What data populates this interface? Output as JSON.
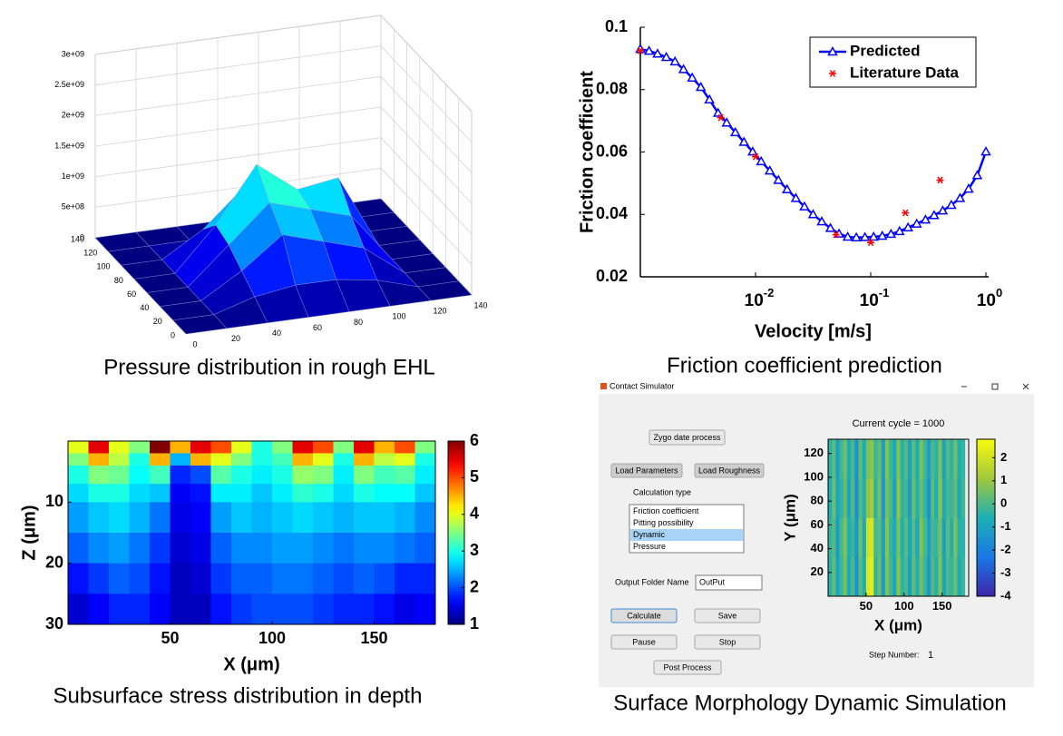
{
  "chart_data": [
    {
      "type": "surface3d",
      "caption": "Pressure distribution in rough EHL",
      "x": [
        0,
        20,
        40,
        60,
        80,
        100,
        120,
        140
      ],
      "y": [
        0,
        20,
        40,
        60,
        80,
        100,
        120,
        140
      ],
      "z": [
        [
          0,
          0,
          0,
          0,
          0,
          0,
          0,
          0
        ],
        [
          0,
          0,
          200000000.0,
          300000000.0,
          300000000.0,
          200000000.0,
          0,
          0
        ],
        [
          0,
          0,
          400000000.0,
          900000000.0,
          700000000.0,
          500000000.0,
          0,
          0
        ],
        [
          0,
          0,
          600000000.0,
          1200000000.0,
          1000000000.0,
          800000000.0,
          0,
          0
        ],
        [
          0,
          0,
          700000000.0,
          1600000000.0,
          1100000000.0,
          1200000000.0,
          0,
          0
        ],
        [
          0,
          0,
          400000000.0,
          1000000000.0,
          900000000.0,
          600000000.0,
          0,
          0
        ],
        [
          0,
          0,
          0,
          200000000.0,
          200000000.0,
          0,
          0,
          0
        ],
        [
          0,
          0,
          0,
          0,
          0,
          0,
          0,
          0
        ]
      ],
      "xlim": [
        0,
        140
      ],
      "ylim": [
        0,
        140
      ],
      "zlim": [
        0,
        3000000000.0
      ],
      "xticks": [
        0,
        20,
        40,
        60,
        80,
        100,
        120,
        140
      ],
      "yticks": [
        0,
        20,
        40,
        60,
        80,
        100,
        120,
        140
      ],
      "zticks": [
        0,
        {
          "value": 500000000.0,
          "label": "5e+08"
        },
        {
          "value": 1000000000.0,
          "label": "1e+09"
        },
        {
          "value": 1500000000.0,
          "label": "1.5e+09"
        },
        {
          "value": 2000000000.0,
          "label": "2e+09"
        },
        {
          "value": 2500000000.0,
          "label": "2.5e+09"
        },
        {
          "value": 3000000000.0,
          "label": "3e+09"
        }
      ],
      "colormap": "jet",
      "grid": true
    },
    {
      "type": "line",
      "caption": "Friction coefficient prediction",
      "xlabel": "Velocity [m/s]",
      "ylabel": "Friction coefficient",
      "xscale": "log",
      "xlim": [
        0.001,
        1
      ],
      "ylim": [
        0.02,
        0.1
      ],
      "xticks": [
        {
          "value": 0.01,
          "label": "10",
          "exponent": "-2"
        },
        {
          "value": 0.1,
          "label": "10",
          "exponent": "-1"
        },
        {
          "value": 1,
          "label": "10",
          "exponent": "0"
        }
      ],
      "yticks": [
        0.02,
        0.04,
        0.06,
        0.08,
        0.1
      ],
      "legend": "upper right",
      "series": [
        {
          "name": "Predicted",
          "color": "#0000ff",
          "marker": "triangle",
          "line": true,
          "x": [
            0.001,
            0.00119,
            0.00141,
            0.00168,
            0.002,
            0.00237,
            0.00282,
            0.00335,
            0.00398,
            0.00473,
            0.00562,
            0.00668,
            0.00794,
            0.00944,
            0.0112,
            0.0133,
            0.0158,
            0.0188,
            0.0224,
            0.0266,
            0.0316,
            0.0376,
            0.0447,
            0.0531,
            0.0631,
            0.075,
            0.0891,
            0.106,
            0.126,
            0.15,
            0.178,
            0.211,
            0.251,
            0.299,
            0.355,
            0.422,
            0.501,
            0.596,
            0.708,
            0.841,
            1
          ],
          "values": [
            0.093,
            0.0924,
            0.0915,
            0.0904,
            0.089,
            0.0865,
            0.0838,
            0.0808,
            0.0768,
            0.0725,
            0.0694,
            0.0663,
            0.0632,
            0.0601,
            0.057,
            0.054,
            0.051,
            0.048,
            0.0452,
            0.0425,
            0.04,
            0.0377,
            0.0356,
            0.0338,
            0.0328,
            0.0326,
            0.0327,
            0.0328,
            0.0331,
            0.0337,
            0.0346,
            0.0358,
            0.037,
            0.0383,
            0.0397,
            0.0412,
            0.043,
            0.0452,
            0.0482,
            0.0525,
            0.0601
          ]
        },
        {
          "name": "Literature Data",
          "color": "#ff0000",
          "marker": "star",
          "line": false,
          "x": [
            0.001,
            0.005,
            0.01,
            0.05,
            0.1,
            0.2,
            0.4
          ],
          "values": [
            0.0925,
            0.071,
            0.0585,
            0.0335,
            0.031,
            0.0405,
            0.051
          ]
        }
      ]
    },
    {
      "type": "heatmap",
      "caption": "Subsurface stress distribution in depth",
      "xlabel": "X (μm)",
      "ylabel": "Z (μm)",
      "xbins": [
        0,
        10,
        20,
        30,
        40,
        50,
        60,
        70,
        80,
        90,
        100,
        110,
        120,
        130,
        140,
        150,
        160,
        170,
        180
      ],
      "ybins": [
        0,
        2,
        4,
        7,
        10,
        15,
        20,
        25,
        30
      ],
      "z": [
        [
          4,
          5.5,
          4,
          3.5,
          6,
          4.5,
          5.5,
          5,
          4,
          3,
          3.5,
          5.5,
          5,
          3.5,
          5.5,
          4.5,
          5,
          3.5
        ],
        [
          3.5,
          4.5,
          3.8,
          3,
          4.5,
          2.5,
          4.5,
          4,
          3.5,
          3,
          3.2,
          4.5,
          4,
          3,
          4.5,
          3.8,
          4,
          3
        ],
        [
          3,
          3.5,
          3.4,
          2.9,
          3.2,
          1.8,
          2,
          3.3,
          3,
          2.8,
          3,
          3.6,
          3.5,
          2.8,
          3.5,
          3.2,
          3.3,
          2.8
        ],
        [
          2.7,
          3,
          3,
          2.7,
          2.6,
          1.6,
          1.7,
          2.8,
          2.8,
          2.6,
          2.8,
          3.1,
          3,
          2.7,
          3,
          2.9,
          2.9,
          2.6
        ],
        [
          2.4,
          2.6,
          2.7,
          2.5,
          2.2,
          1.5,
          1.6,
          2.4,
          2.6,
          2.5,
          2.6,
          2.7,
          2.6,
          2.5,
          2.6,
          2.6,
          2.5,
          2.3
        ],
        [
          2.1,
          2.3,
          2.4,
          2.2,
          1.9,
          1.4,
          1.5,
          2.1,
          2.3,
          2.3,
          2.4,
          2.4,
          2.3,
          2.2,
          2.3,
          2.3,
          2.2,
          2.1
        ],
        [
          1.7,
          1.9,
          2.1,
          2,
          1.7,
          1.3,
          1.4,
          1.9,
          2.1,
          2.1,
          2.2,
          2.2,
          2.1,
          2,
          2.1,
          2,
          1.8,
          1.8
        ],
        [
          1.4,
          1.6,
          1.8,
          1.8,
          1.6,
          1.3,
          1.3,
          1.7,
          1.9,
          2,
          2,
          2,
          1.9,
          1.8,
          1.8,
          1.7,
          1.5,
          1.6
        ]
      ],
      "xlim": [
        0,
        180
      ],
      "ylim": [
        0,
        30
      ],
      "reversed": true,
      "xticks": [
        50,
        100,
        150
      ],
      "yticks": [
        10,
        20,
        30
      ],
      "clim": [
        1,
        6
      ],
      "cticks": [
        1,
        2,
        3,
        4,
        5,
        6
      ],
      "colormap": "jet"
    },
    {
      "type": "heatmap",
      "title": "Current cycle = 1000",
      "xlabel": "X (μm)",
      "ylabel": "Y (μm)",
      "xbins": [
        0,
        5,
        10,
        15,
        20,
        25,
        30,
        35,
        40,
        45,
        50,
        55,
        60,
        65,
        70,
        75,
        80,
        85,
        90,
        95,
        100,
        105,
        110,
        115,
        120,
        125,
        130,
        135,
        140,
        145,
        150,
        155,
        160,
        165,
        170,
        175,
        180
      ],
      "ybins": [
        0,
        33,
        66,
        99,
        132
      ],
      "z": [
        [
          -0.5,
          0.3,
          -1,
          -0.2,
          0.5,
          -0.8,
          0,
          -1.5,
          0.2,
          -0.6,
          2.2,
          2.4,
          -0.3,
          0.4,
          -1.2,
          0.6,
          -0.1,
          -0.9,
          0.8,
          -0.4,
          0,
          -1.1,
          0.3,
          -0.6,
          0.5,
          -0.2,
          -1.3,
          0.1,
          -0.5,
          0.7,
          -0.9,
          0,
          -0.3,
          0.4,
          -0.7,
          -0.2
        ],
        [
          -0.3,
          0.1,
          -1.2,
          0,
          0.6,
          -0.6,
          -0.2,
          -1.3,
          0.4,
          -0.8,
          2,
          2.1,
          -0.1,
          0.2,
          -1,
          0.8,
          -0.3,
          -0.7,
          0.6,
          -0.6,
          0.2,
          -0.9,
          0.1,
          -0.8,
          0.7,
          0,
          -1.1,
          -0.1,
          -0.3,
          0.5,
          -1.1,
          0.2,
          -0.5,
          0.6,
          -0.5,
          -0.4
        ],
        [
          -0.6,
          0.4,
          -0.9,
          -0.3,
          0.3,
          -0.9,
          0.1,
          -1.6,
          0.1,
          -0.5,
          0.9,
          1.2,
          -0.4,
          0.5,
          -1.3,
          0.5,
          0,
          -1,
          0.9,
          -0.3,
          -0.1,
          -1.2,
          0.4,
          -0.5,
          0.4,
          -0.3,
          -1.4,
          0.2,
          -0.6,
          0.8,
          -0.8,
          -0.1,
          -0.2,
          0.3,
          -0.8,
          -0.1
        ],
        [
          -0.4,
          0.2,
          -1.1,
          -0.1,
          0.4,
          -0.7,
          0,
          -1.4,
          0.3,
          -0.7,
          0.6,
          0.8,
          -0.2,
          0.3,
          -1.1,
          0.7,
          -0.2,
          -0.8,
          0.7,
          -0.5,
          0.1,
          -1,
          0.2,
          -0.7,
          0.6,
          -0.1,
          -1.2,
          0,
          -0.4,
          0.6,
          -1,
          0.1,
          -0.4,
          0.5,
          -0.6,
          -0.3
        ]
      ],
      "xlim": [
        0,
        185
      ],
      "ylim": [
        0,
        132
      ],
      "reversed": false,
      "xticks": [
        50,
        100,
        150
      ],
      "yticks": [
        20,
        40,
        60,
        80,
        100,
        120
      ],
      "clim": [
        -4,
        2.8
      ],
      "cticks": [
        -4,
        -3,
        -2,
        -1,
        0,
        1,
        2
      ],
      "colormap": "parula"
    }
  ],
  "app": {
    "window_title": "Contact Simulator",
    "buttons": [
      "Zygo date process",
      "Load Parameters",
      "Load Roughness",
      "Calculate",
      "Save",
      "Pause",
      "Stop",
      "Post Process"
    ],
    "calculation_type_label": "Calculation type",
    "calculation_types": [
      "Friction coefficient",
      "Pitting possibility",
      "Dynamic",
      "Pressure"
    ],
    "selected_type": 2,
    "output_folder_label": "Output Folder Name",
    "output_folder_value": "OutPut",
    "step_number_label": "Step Number:",
    "step_number": 1,
    "caption": "Surface Morphology Dynamic Simulation"
  }
}
